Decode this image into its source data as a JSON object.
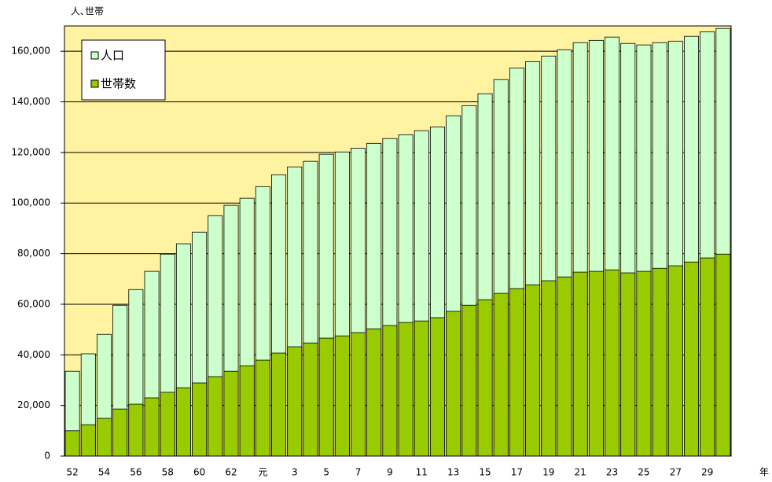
{
  "chart_data": {
    "type": "bar",
    "y_label": "人､世帯",
    "x_label": "年",
    "categories": [
      "52",
      null,
      "54",
      null,
      "56",
      null,
      "58",
      null,
      "60",
      null,
      "62",
      null,
      "元",
      null,
      "3",
      null,
      "5",
      null,
      "7",
      null,
      "9",
      null,
      "11",
      null,
      "13",
      null,
      "15",
      null,
      "17",
      null,
      "19",
      null,
      "21",
      null,
      "23",
      null,
      "25",
      null,
      "27",
      null,
      "29",
      null
    ],
    "series": [
      {
        "name": "人口",
        "color": "#ccffcc",
        "values": [
          33500,
          40400,
          48100,
          59600,
          65800,
          73000,
          79800,
          83900,
          88500,
          95000,
          99100,
          101900,
          106500,
          111200,
          114300,
          116500,
          119300,
          120200,
          121700,
          123600,
          125500,
          127000,
          128600,
          130100,
          134500,
          138500,
          143200,
          148800,
          153400,
          155900,
          158100,
          160600,
          163400,
          164300,
          165600,
          163100,
          162500,
          163400,
          164000,
          165900,
          167700,
          169000
        ]
      },
      {
        "name": "世帯数",
        "color": "#99cc00",
        "values": [
          10000,
          12400,
          14900,
          18600,
          20500,
          23000,
          25200,
          27000,
          28900,
          31400,
          33500,
          35700,
          37900,
          40700,
          43200,
          44700,
          46600,
          47500,
          48800,
          50300,
          51600,
          52800,
          53400,
          54700,
          57200,
          59600,
          61800,
          64300,
          66200,
          67700,
          69300,
          70800,
          72700,
          73000,
          73600,
          72400,
          73000,
          74200,
          75200,
          76700,
          78300,
          79800
        ]
      }
    ],
    "ylim": [
      0,
      170000
    ],
    "yticks": [
      0,
      {
        "value": 20000,
        "label": "20,000"
      },
      {
        "value": 40000,
        "label": "40,000"
      },
      {
        "value": 60000,
        "label": "60,000"
      },
      {
        "value": 80000,
        "label": "80,000"
      },
      {
        "value": 100000,
        "label": "100,000"
      },
      {
        "value": 120000,
        "label": "120,000"
      },
      {
        "value": 140000,
        "label": "140,000"
      },
      {
        "value": 160000,
        "label": "160,000"
      }
    ],
    "grid": true,
    "legend": "upper left",
    "plot_background": "#fff2a0"
  }
}
